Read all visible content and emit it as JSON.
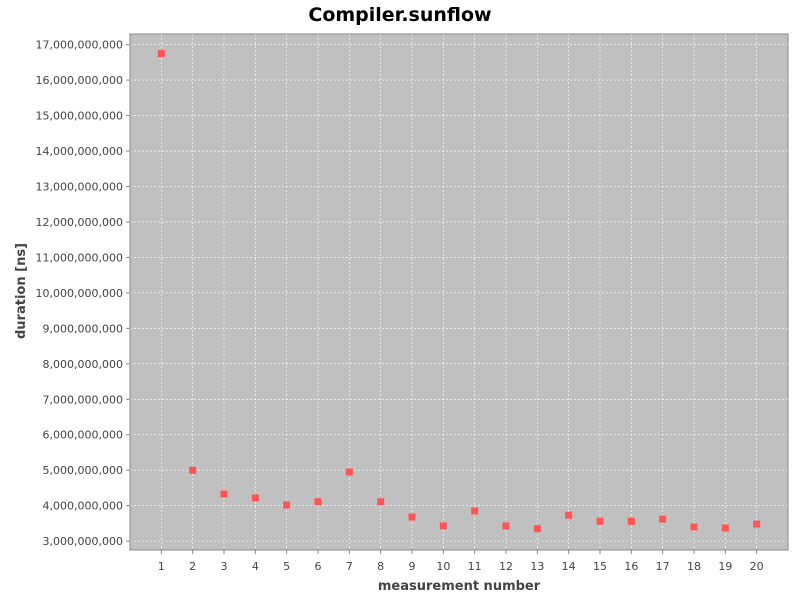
{
  "chart_data": {
    "type": "scatter",
    "title": "Compiler.sunflow",
    "xlabel": "measurement number",
    "ylabel": "duration [ns]",
    "xlim": [
      0,
      21
    ],
    "ylim": [
      2750000000,
      17300000000
    ],
    "x_ticks": [
      1,
      2,
      3,
      4,
      5,
      6,
      7,
      8,
      9,
      10,
      11,
      12,
      13,
      14,
      15,
      16,
      17,
      18,
      19,
      20
    ],
    "y_ticks": [
      3000000000,
      4000000000,
      5000000000,
      6000000000,
      7000000000,
      8000000000,
      9000000000,
      10000000000,
      11000000000,
      12000000000,
      13000000000,
      14000000000,
      15000000000,
      16000000000,
      17000000000
    ],
    "y_tick_labels": [
      "3,000,000,000",
      "4,000,000,000",
      "5,000,000,000",
      "6,000,000,000",
      "7,000,000,000",
      "8,000,000,000",
      "9,000,000,000",
      "10,000,000,000",
      "11,000,000,000",
      "12,000,000,000",
      "13,000,000,000",
      "14,000,000,000",
      "15,000,000,000",
      "16,000,000,000",
      "17,000,000,000"
    ],
    "grid": true,
    "colors": {
      "plot_background": "#c0c0c0",
      "marker": "#ff5555",
      "grid": "#ffffff"
    },
    "series": [
      {
        "x": [
          1,
          2,
          3,
          4,
          5,
          6,
          7,
          8,
          9,
          10,
          11,
          12,
          13,
          14,
          15,
          16,
          17,
          18,
          19,
          20
        ],
        "y": [
          16750000000,
          5000000000,
          4330000000,
          4220000000,
          4020000000,
          4110000000,
          4950000000,
          4110000000,
          3680000000,
          3430000000,
          3850000000,
          3430000000,
          3350000000,
          3730000000,
          3560000000,
          3560000000,
          3620000000,
          3400000000,
          3370000000,
          3480000000
        ]
      }
    ]
  }
}
